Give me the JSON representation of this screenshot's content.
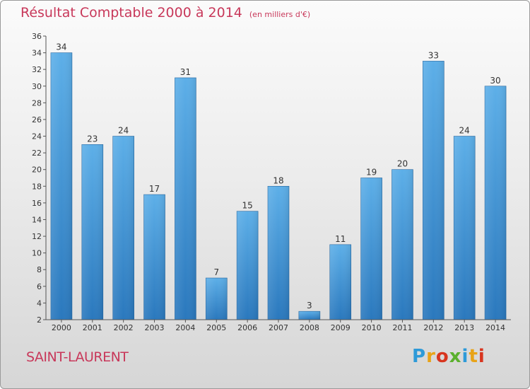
{
  "header": {
    "title": "Résultat Comptable 2000 à 2014",
    "unit": "(en milliers d'€)"
  },
  "footer": {
    "place": "SAINT-LAURENT",
    "brand": "Proxiti",
    "brand_colors": [
      "#2e9ad8",
      "#e8a317",
      "#d8351f",
      "#5bb02e",
      "#2e9ad8",
      "#e8a317",
      "#d8351f"
    ]
  },
  "chart_data": {
    "type": "bar",
    "title": "Résultat Comptable 2000 à 2014",
    "subtitle": "(en milliers d'€)",
    "xlabel": "",
    "ylabel": "",
    "categories": [
      "2000",
      "2001",
      "2002",
      "2003",
      "2004",
      "2005",
      "2006",
      "2007",
      "2008",
      "2009",
      "2010",
      "2011",
      "2012",
      "2013",
      "2014"
    ],
    "values": [
      34,
      23,
      24,
      17,
      31,
      7,
      15,
      18,
      3,
      11,
      19,
      20,
      33,
      24,
      30
    ],
    "ylim": [
      2,
      36
    ],
    "yticks": [
      2,
      4,
      6,
      8,
      10,
      12,
      14,
      16,
      18,
      20,
      22,
      24,
      26,
      28,
      30,
      32,
      34,
      36
    ],
    "grid": false,
    "bar_color": "#3f92d2"
  }
}
